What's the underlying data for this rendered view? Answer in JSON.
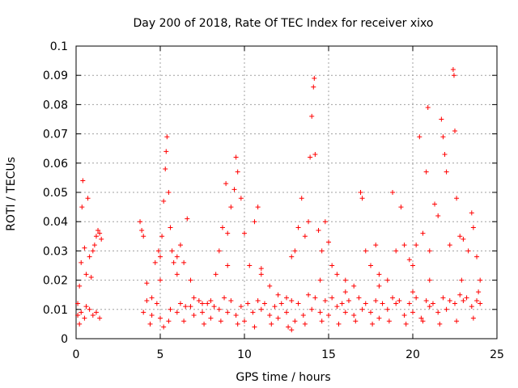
{
  "chart_data": {
    "type": "scatter",
    "title": "Day 200 of 2018, Rate Of TEC Index for receiver xixo",
    "xlabel": "GPS time / hours",
    "ylabel": "ROTI / TECUs",
    "xlim": [
      0,
      25
    ],
    "ylim": [
      0,
      0.1
    ],
    "x_ticks": [
      "0",
      "5",
      "10",
      "15",
      "20",
      "25"
    ],
    "y_ticks": [
      "0",
      "0.01",
      "0.02",
      "0.03",
      "0.04",
      "0.05",
      "0.06",
      "0.07",
      "0.08",
      "0.09",
      "0.1"
    ],
    "grid": true,
    "marker": "plus",
    "color": "#ff0000",
    "points": [
      [
        0.1,
        0.012
      ],
      [
        0.2,
        0.018
      ],
      [
        0.3,
        0.026
      ],
      [
        0.35,
        0.045
      ],
      [
        0.4,
        0.054
      ],
      [
        0.5,
        0.031
      ],
      [
        0.6,
        0.022
      ],
      [
        0.7,
        0.048
      ],
      [
        0.8,
        0.028
      ],
      [
        0.9,
        0.021
      ],
      [
        1.0,
        0.03
      ],
      [
        1.1,
        0.032
      ],
      [
        1.2,
        0.035
      ],
      [
        1.3,
        0.037
      ],
      [
        1.4,
        0.036
      ],
      [
        1.5,
        0.034
      ],
      [
        0.1,
        0.008
      ],
      [
        0.3,
        0.009
      ],
      [
        0.5,
        0.007
      ],
      [
        0.8,
        0.01
      ],
      [
        1.0,
        0.008
      ],
      [
        1.2,
        0.009
      ],
      [
        1.4,
        0.007
      ],
      [
        0.6,
        0.011
      ],
      [
        3.8,
        0.04
      ],
      [
        3.9,
        0.037
      ],
      [
        4.0,
        0.035
      ],
      [
        4.2,
        0.019
      ],
      [
        4.5,
        0.014
      ],
      [
        4.7,
        0.026
      ],
      [
        4.9,
        0.03
      ],
      [
        5.0,
        0.028
      ],
      [
        5.1,
        0.035
      ],
      [
        5.2,
        0.047
      ],
      [
        5.3,
        0.058
      ],
      [
        5.35,
        0.064
      ],
      [
        5.4,
        0.069
      ],
      [
        5.5,
        0.05
      ],
      [
        5.6,
        0.038
      ],
      [
        5.7,
        0.03
      ],
      [
        5.8,
        0.026
      ],
      [
        6.0,
        0.028
      ],
      [
        6.2,
        0.032
      ],
      [
        6.4,
        0.026
      ],
      [
        6.6,
        0.041
      ],
      [
        6.8,
        0.02
      ],
      [
        7.0,
        0.014
      ],
      [
        7.5,
        0.012
      ],
      [
        8.0,
        0.013
      ],
      [
        8.3,
        0.022
      ],
      [
        8.5,
        0.03
      ],
      [
        8.7,
        0.038
      ],
      [
        8.9,
        0.053
      ],
      [
        9.0,
        0.036
      ],
      [
        9.2,
        0.045
      ],
      [
        9.4,
        0.051
      ],
      [
        9.5,
        0.062
      ],
      [
        9.6,
        0.057
      ],
      [
        9.8,
        0.048
      ],
      [
        10.0,
        0.036
      ],
      [
        10.3,
        0.025
      ],
      [
        10.6,
        0.04
      ],
      [
        10.8,
        0.045
      ],
      [
        11.0,
        0.024
      ],
      [
        11.5,
        0.018
      ],
      [
        12.0,
        0.015
      ],
      [
        12.5,
        0.014
      ],
      [
        12.8,
        0.028
      ],
      [
        13.0,
        0.03
      ],
      [
        13.2,
        0.038
      ],
      [
        13.4,
        0.048
      ],
      [
        13.6,
        0.035
      ],
      [
        13.8,
        0.04
      ],
      [
        13.9,
        0.062
      ],
      [
        14.0,
        0.076
      ],
      [
        14.1,
        0.086
      ],
      [
        14.15,
        0.089
      ],
      [
        14.2,
        0.063
      ],
      [
        14.4,
        0.037
      ],
      [
        14.6,
        0.03
      ],
      [
        14.8,
        0.04
      ],
      [
        15.0,
        0.033
      ],
      [
        15.2,
        0.025
      ],
      [
        15.5,
        0.022
      ],
      [
        16.0,
        0.02
      ],
      [
        16.5,
        0.018
      ],
      [
        16.9,
        0.05
      ],
      [
        17.0,
        0.048
      ],
      [
        17.2,
        0.03
      ],
      [
        17.5,
        0.025
      ],
      [
        17.8,
        0.032
      ],
      [
        18.0,
        0.022
      ],
      [
        18.5,
        0.02
      ],
      [
        18.8,
        0.05
      ],
      [
        19.0,
        0.03
      ],
      [
        19.3,
        0.045
      ],
      [
        19.5,
        0.032
      ],
      [
        19.8,
        0.027
      ],
      [
        20.0,
        0.025
      ],
      [
        20.2,
        0.032
      ],
      [
        20.4,
        0.069
      ],
      [
        20.6,
        0.036
      ],
      [
        20.8,
        0.057
      ],
      [
        20.9,
        0.079
      ],
      [
        21.0,
        0.03
      ],
      [
        21.3,
        0.046
      ],
      [
        21.5,
        0.042
      ],
      [
        21.7,
        0.075
      ],
      [
        21.8,
        0.069
      ],
      [
        21.9,
        0.063
      ],
      [
        22.0,
        0.057
      ],
      [
        22.2,
        0.032
      ],
      [
        22.4,
        0.092
      ],
      [
        22.45,
        0.09
      ],
      [
        22.5,
        0.071
      ],
      [
        22.6,
        0.048
      ],
      [
        22.8,
        0.035
      ],
      [
        23.0,
        0.034
      ],
      [
        23.3,
        0.03
      ],
      [
        23.5,
        0.043
      ],
      [
        23.6,
        0.038
      ],
      [
        23.8,
        0.028
      ],
      [
        24.0,
        0.02
      ],
      [
        4.0,
        0.009
      ],
      [
        4.5,
        0.008
      ],
      [
        5.0,
        0.007
      ],
      [
        5.5,
        0.006
      ],
      [
        6.0,
        0.009
      ],
      [
        6.5,
        0.011
      ],
      [
        7.0,
        0.008
      ],
      [
        7.5,
        0.009
      ],
      [
        8.0,
        0.007
      ],
      [
        8.5,
        0.01
      ],
      [
        9.0,
        0.009
      ],
      [
        9.5,
        0.008
      ],
      [
        10.0,
        0.006
      ],
      [
        10.5,
        0.009
      ],
      [
        11.0,
        0.01
      ],
      [
        11.5,
        0.008
      ],
      [
        12.0,
        0.007
      ],
      [
        12.5,
        0.009
      ],
      [
        13.0,
        0.006
      ],
      [
        13.5,
        0.008
      ],
      [
        14.0,
        0.01
      ],
      [
        14.5,
        0.009
      ],
      [
        15.0,
        0.008
      ],
      [
        15.5,
        0.011
      ],
      [
        16.0,
        0.009
      ],
      [
        16.5,
        0.008
      ],
      [
        17.0,
        0.01
      ],
      [
        17.5,
        0.009
      ],
      [
        18.0,
        0.007
      ],
      [
        18.5,
        0.01
      ],
      [
        19.0,
        0.012
      ],
      [
        19.5,
        0.008
      ],
      [
        20.0,
        0.009
      ],
      [
        20.5,
        0.007
      ],
      [
        21.0,
        0.011
      ],
      [
        21.5,
        0.009
      ],
      [
        22.0,
        0.01
      ],
      [
        22.5,
        0.012
      ],
      [
        23.0,
        0.013
      ],
      [
        23.5,
        0.011
      ],
      [
        24.0,
        0.012
      ],
      [
        4.2,
        0.013
      ],
      [
        4.8,
        0.012
      ],
      [
        5.6,
        0.01
      ],
      [
        6.2,
        0.012
      ],
      [
        6.8,
        0.011
      ],
      [
        7.3,
        0.013
      ],
      [
        7.8,
        0.012
      ],
      [
        8.2,
        0.011
      ],
      [
        8.8,
        0.014
      ],
      [
        9.2,
        0.013
      ],
      [
        9.8,
        0.011
      ],
      [
        10.2,
        0.012
      ],
      [
        10.8,
        0.013
      ],
      [
        11.2,
        0.012
      ],
      [
        11.8,
        0.011
      ],
      [
        12.2,
        0.012
      ],
      [
        12.8,
        0.013
      ],
      [
        13.2,
        0.012
      ],
      [
        13.8,
        0.015
      ],
      [
        14.2,
        0.014
      ],
      [
        14.8,
        0.013
      ],
      [
        15.2,
        0.014
      ],
      [
        15.8,
        0.012
      ],
      [
        16.2,
        0.013
      ],
      [
        16.8,
        0.014
      ],
      [
        17.2,
        0.012
      ],
      [
        17.8,
        0.013
      ],
      [
        18.2,
        0.012
      ],
      [
        18.8,
        0.014
      ],
      [
        19.2,
        0.013
      ],
      [
        19.8,
        0.012
      ],
      [
        20.2,
        0.014
      ],
      [
        20.8,
        0.013
      ],
      [
        21.2,
        0.012
      ],
      [
        21.8,
        0.014
      ],
      [
        22.2,
        0.013
      ],
      [
        22.8,
        0.015
      ],
      [
        23.2,
        0.014
      ],
      [
        23.8,
        0.013
      ],
      [
        4.4,
        0.005
      ],
      [
        5.2,
        0.004
      ],
      [
        6.4,
        0.006
      ],
      [
        7.6,
        0.005
      ],
      [
        8.6,
        0.006
      ],
      [
        9.6,
        0.005
      ],
      [
        10.6,
        0.004
      ],
      [
        11.6,
        0.005
      ],
      [
        12.6,
        0.004
      ],
      [
        13.6,
        0.005
      ],
      [
        14.6,
        0.006
      ],
      [
        15.6,
        0.005
      ],
      [
        16.6,
        0.006
      ],
      [
        17.6,
        0.005
      ],
      [
        18.6,
        0.006
      ],
      [
        19.6,
        0.005
      ],
      [
        20.6,
        0.006
      ],
      [
        21.6,
        0.005
      ],
      [
        22.6,
        0.006
      ],
      [
        23.6,
        0.007
      ],
      [
        12.8,
        0.003
      ],
      [
        0.2,
        0.005
      ],
      [
        5.0,
        0.02
      ],
      [
        6.0,
        0.022
      ],
      [
        9.0,
        0.025
      ],
      [
        11.0,
        0.022
      ],
      [
        14.5,
        0.02
      ],
      [
        16.0,
        0.016
      ],
      [
        18.0,
        0.018
      ],
      [
        20.0,
        0.016
      ],
      [
        21.0,
        0.02
      ],
      [
        22.9,
        0.02
      ],
      [
        23.9,
        0.016
      ]
    ]
  }
}
